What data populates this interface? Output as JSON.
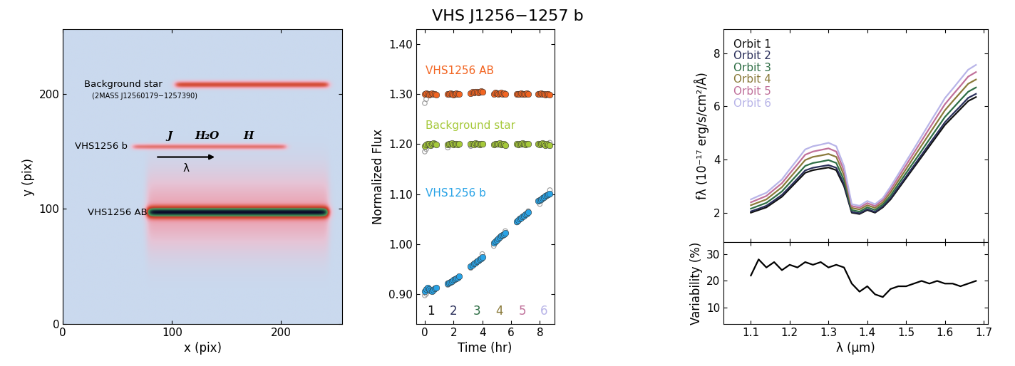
{
  "title": "VHS J1256−1257 b",
  "chart_data": [
    {
      "type": "image",
      "xlabel": "x (pix)",
      "ylabel": "y (pix)",
      "xlim": [
        0,
        256
      ],
      "ylim": [
        0,
        256
      ],
      "xticks": [
        0,
        100,
        200
      ],
      "yticks": [
        0,
        100,
        200
      ],
      "traces": [
        {
          "name": "Background star",
          "designation": "(2MASS J12560179−1257390)",
          "x": [
            103,
            244
          ],
          "y": 208,
          "label_x": 55,
          "label_y": 208,
          "designation_x": 75,
          "designation_y": 198,
          "components": [
            {
              "peak": 0.62,
              "fwhm": 5
            }
          ]
        },
        {
          "name": "VHS1256 b",
          "x": [
            64,
            205
          ],
          "y": 154,
          "label_x": 35,
          "label_y": 154,
          "components": [
            {
              "peak": 0.45,
              "fwhm": 4
            }
          ]
        },
        {
          "name": "VHS1256 AB",
          "x": [
            77,
            244
          ],
          "y": 97,
          "label_x": 50,
          "label_y": 97,
          "components": [
            {
              "peak": 1.0,
              "fwhm": 8
            },
            {
              "peak": 0.28,
              "fwhm": 55
            }
          ]
        }
      ],
      "features": [
        {
          "text": "J",
          "x": 98
        },
        {
          "text": "H₂O",
          "x": 132
        },
        {
          "text": "H",
          "x": 170
        }
      ],
      "features_y": 163,
      "arrow": {
        "text": "λ",
        "x": [
          85,
          141
        ],
        "y": 145,
        "text_x": 113,
        "text_y": 135
      }
    },
    {
      "type": "scatter",
      "xlabel": "Time (hr)",
      "ylabel": "Normalized Flux",
      "xlim": [
        -0.6,
        9.0
      ],
      "ylim": [
        0.84,
        1.43
      ],
      "xticks": [
        0,
        2,
        4,
        6,
        8
      ],
      "yticks": [
        {
          "value": 0.9,
          "label": "0.90"
        },
        {
          "value": 1.0,
          "label": "1.00"
        },
        {
          "value": 1.1,
          "label": "1.10"
        },
        {
          "value": 1.2,
          "label": "1.20"
        },
        {
          "value": 1.3,
          "label": "1.30"
        },
        {
          "value": 1.4,
          "label": "1.40"
        }
      ],
      "series": [
        {
          "color": "#9a9a9a",
          "marker": "open circle",
          "x": [
            0.0,
            0.1,
            1.6,
            3.2,
            4.0,
            4.8,
            5.6,
            6.4,
            7.2,
            8.0,
            8.7
          ],
          "values": [
            0.897,
            0.9,
            0.918,
            0.952,
            0.98,
            0.996,
            1.026,
            1.043,
            1.066,
            1.08,
            1.108
          ]
        },
        {
          "color": "#9a9a9a",
          "marker": "open circle",
          "x": [
            0.0,
            0.1,
            1.6,
            3.2,
            8.7
          ],
          "values": [
            1.185,
            1.19,
            1.193,
            1.196,
            1.203
          ]
        },
        {
          "color": "#9a9a9a",
          "marker": "open circle",
          "x": [
            0.0,
            0.1
          ],
          "values": [
            1.282,
            1.29
          ]
        },
        {
          "name": "VHS1256 AB",
          "color": "#f26522",
          "marker": "circle",
          "label_x": 0.05,
          "label_y": 1.347,
          "x": [
            0.0,
            0.1,
            0.2,
            0.3,
            0.4,
            0.5,
            0.6,
            0.7,
            0.8,
            1.6,
            1.7,
            1.8,
            1.9,
            2.0,
            2.1,
            2.2,
            2.3,
            2.4,
            3.2,
            3.3,
            3.4,
            3.5,
            3.6,
            3.7,
            3.8,
            3.9,
            4.0,
            4.8,
            4.9,
            5.0,
            5.1,
            5.2,
            5.3,
            5.4,
            5.5,
            5.6,
            6.4,
            6.5,
            6.6,
            6.7,
            6.8,
            6.9,
            7.0,
            7.1,
            7.2,
            7.9,
            8.0,
            8.1,
            8.2,
            8.3,
            8.4,
            8.5,
            8.6,
            8.7
          ],
          "values": [
            1.3,
            1.302,
            1.301,
            1.299,
            1.301,
            1.302,
            1.3,
            1.301,
            1.299,
            1.301,
            1.3,
            1.302,
            1.301,
            1.299,
            1.3,
            1.302,
            1.301,
            1.3,
            1.302,
            1.304,
            1.303,
            1.305,
            1.304,
            1.303,
            1.305,
            1.306,
            1.304,
            1.301,
            1.303,
            1.302,
            1.3,
            1.302,
            1.303,
            1.301,
            1.302,
            1.3,
            1.3,
            1.301,
            1.3,
            1.302,
            1.301,
            1.3,
            1.301,
            1.302,
            1.301,
            1.301,
            1.3,
            1.302,
            1.301,
            1.3,
            1.299,
            1.301,
            1.3,
            1.299
          ]
        },
        {
          "name": "Background star",
          "color": "#a6c93a",
          "marker": "circle",
          "label_x": 0.05,
          "label_y": 1.237,
          "x": [
            0.0,
            0.1,
            0.2,
            0.3,
            0.4,
            0.5,
            0.6,
            0.7,
            0.8,
            1.6,
            1.7,
            1.8,
            1.9,
            2.0,
            2.1,
            2.2,
            2.3,
            2.4,
            3.2,
            3.3,
            3.4,
            3.5,
            3.6,
            3.7,
            3.8,
            3.9,
            4.0,
            4.8,
            4.9,
            5.0,
            5.1,
            5.2,
            5.3,
            5.4,
            5.5,
            5.6,
            6.4,
            6.5,
            6.6,
            6.7,
            6.8,
            6.9,
            7.0,
            7.1,
            7.2,
            7.9,
            8.0,
            8.1,
            8.2,
            8.3,
            8.4,
            8.5,
            8.6,
            8.7
          ],
          "values": [
            1.196,
            1.199,
            1.201,
            1.2,
            1.198,
            1.201,
            1.202,
            1.2,
            1.199,
            1.199,
            1.201,
            1.2,
            1.202,
            1.199,
            1.2,
            1.201,
            1.199,
            1.2,
            1.2,
            1.201,
            1.199,
            1.202,
            1.2,
            1.201,
            1.199,
            1.2,
            1.201,
            1.199,
            1.201,
            1.2,
            1.2,
            1.202,
            1.199,
            1.201,
            1.2,
            1.198,
            1.2,
            1.199,
            1.201,
            1.2,
            1.202,
            1.201,
            1.199,
            1.2,
            1.201,
            1.201,
            1.199,
            1.2,
            1.202,
            1.2,
            1.198,
            1.2,
            1.199,
            1.198
          ]
        },
        {
          "name": "VHS1256 b",
          "color": "#29a3e6",
          "marker": "circle",
          "label_x": 0.05,
          "label_y": 1.102,
          "x": [
            0.0,
            0.1,
            0.2,
            0.3,
            0.4,
            0.5,
            0.6,
            0.7,
            0.8,
            1.6,
            1.7,
            1.8,
            1.9,
            2.0,
            2.1,
            2.2,
            2.3,
            2.4,
            3.2,
            3.3,
            3.4,
            3.5,
            3.6,
            3.7,
            3.8,
            3.9,
            4.0,
            4.8,
            4.9,
            5.0,
            5.1,
            5.2,
            5.3,
            5.4,
            5.5,
            5.6,
            6.4,
            6.5,
            6.6,
            6.7,
            6.8,
            6.9,
            7.0,
            7.1,
            7.2,
            7.9,
            8.0,
            8.1,
            8.2,
            8.3,
            8.4,
            8.5,
            8.6,
            8.7
          ],
          "values": [
            0.905,
            0.909,
            0.912,
            0.91,
            0.907,
            0.906,
            0.908,
            0.911,
            0.912,
            0.921,
            0.923,
            0.924,
            0.926,
            0.928,
            0.929,
            0.931,
            0.933,
            0.935,
            0.955,
            0.958,
            0.961,
            0.963,
            0.965,
            0.967,
            0.969,
            0.971,
            0.974,
            1.002,
            1.005,
            1.008,
            1.011,
            1.014,
            1.016,
            1.018,
            1.02,
            1.022,
            1.045,
            1.048,
            1.051,
            1.053,
            1.055,
            1.057,
            1.059,
            1.061,
            1.063,
            1.086,
            1.088,
            1.09,
            1.092,
            1.094,
            1.096,
            1.098,
            1.1,
            1.101
          ]
        }
      ],
      "orbit_labels": {
        "texts": [
          "1",
          "2",
          "3",
          "4",
          "5",
          "6"
        ],
        "x": [
          0.4,
          2.0,
          3.6,
          5.2,
          6.8,
          8.3
        ],
        "y": 0.865,
        "colors": [
          "#111111",
          "#2a2f5a",
          "#2e6e45",
          "#8a7a3a",
          "#c0709a",
          "#b8b4e8"
        ]
      }
    },
    {
      "type": "line",
      "ylabel": "fλ (10⁻¹⁷ erg/s/cm²/Å)",
      "tick_labels": "y",
      "legend": "upper left",
      "xlim": [
        1.03,
        1.71
      ],
      "ylim": [
        0.9,
        8.9
      ],
      "xticks": [
        1.1,
        1.2,
        1.3,
        1.4,
        1.5,
        1.6,
        1.7
      ],
      "yticks": [
        2,
        4,
        6,
        8
      ],
      "x": [
        1.1,
        1.12,
        1.14,
        1.16,
        1.18,
        1.2,
        1.22,
        1.24,
        1.26,
        1.28,
        1.3,
        1.32,
        1.34,
        1.36,
        1.38,
        1.4,
        1.42,
        1.44,
        1.46,
        1.48,
        1.5,
        1.52,
        1.54,
        1.56,
        1.58,
        1.6,
        1.62,
        1.64,
        1.66,
        1.68
      ],
      "series": [
        {
          "name": "Orbit 1",
          "color": "#111111",
          "values": [
            2.0,
            2.1,
            2.2,
            2.4,
            2.6,
            2.9,
            3.2,
            3.5,
            3.6,
            3.65,
            3.7,
            3.6,
            3.0,
            2.0,
            1.95,
            2.1,
            2.0,
            2.2,
            2.5,
            2.9,
            3.3,
            3.7,
            4.1,
            4.5,
            4.9,
            5.3,
            5.6,
            5.9,
            6.2,
            6.35
          ]
        },
        {
          "name": "Orbit 2",
          "color": "#2a2f5a",
          "values": [
            2.05,
            2.15,
            2.26,
            2.46,
            2.67,
            2.97,
            3.28,
            3.59,
            3.69,
            3.74,
            3.79,
            3.69,
            3.08,
            2.03,
            1.98,
            2.13,
            2.03,
            2.24,
            2.55,
            2.96,
            3.36,
            3.77,
            4.18,
            4.59,
            4.99,
            5.4,
            5.71,
            6.01,
            6.32,
            6.47
          ]
        },
        {
          "name": "Orbit 3",
          "color": "#2e6e45",
          "values": [
            2.15,
            2.26,
            2.37,
            2.58,
            2.8,
            3.12,
            3.44,
            3.76,
            3.87,
            3.92,
            3.98,
            3.87,
            3.23,
            2.1,
            2.04,
            2.2,
            2.1,
            2.31,
            2.64,
            3.07,
            3.49,
            3.91,
            4.33,
            4.76,
            5.18,
            5.6,
            5.92,
            6.24,
            6.55,
            6.71
          ]
        },
        {
          "name": "Orbit 4",
          "color": "#8a7a3a",
          "values": [
            2.28,
            2.39,
            2.5,
            2.73,
            2.96,
            3.3,
            3.64,
            3.98,
            4.1,
            4.15,
            4.21,
            4.1,
            3.41,
            2.18,
            2.12,
            2.28,
            2.18,
            2.39,
            2.76,
            3.2,
            3.64,
            4.09,
            4.53,
            4.97,
            5.41,
            5.85,
            6.19,
            6.52,
            6.85,
            7.01
          ]
        },
        {
          "name": "Orbit 5",
          "color": "#c0709a",
          "values": [
            2.39,
            2.51,
            2.63,
            2.87,
            3.11,
            3.47,
            3.82,
            4.18,
            4.3,
            4.36,
            4.42,
            4.3,
            3.59,
            2.25,
            2.19,
            2.36,
            2.25,
            2.48,
            2.87,
            3.33,
            3.79,
            4.25,
            4.71,
            5.17,
            5.63,
            6.08,
            6.43,
            6.77,
            7.12,
            7.29
          ]
        },
        {
          "name": "Orbit 6",
          "color": "#b8b4e8",
          "values": [
            2.5,
            2.63,
            2.75,
            3.0,
            3.25,
            3.63,
            4.0,
            4.38,
            4.5,
            4.56,
            4.63,
            4.5,
            3.75,
            2.32,
            2.26,
            2.44,
            2.32,
            2.55,
            2.98,
            3.45,
            3.93,
            4.4,
            4.88,
            5.36,
            5.83,
            6.31,
            6.66,
            7.02,
            7.38,
            7.56
          ]
        }
      ]
    },
    {
      "type": "line",
      "xlabel": "λ (μm)",
      "ylabel": "Variability (%)",
      "xlim": [
        1.03,
        1.71
      ],
      "ylim": [
        4,
        34.5
      ],
      "xticks": [
        1.1,
        1.2,
        1.3,
        1.4,
        1.5,
        1.6,
        1.7
      ],
      "yticks": [
        10,
        20,
        30
      ],
      "x": [
        1.1,
        1.12,
        1.14,
        1.16,
        1.18,
        1.2,
        1.22,
        1.24,
        1.26,
        1.28,
        1.3,
        1.32,
        1.34,
        1.36,
        1.38,
        1.4,
        1.42,
        1.44,
        1.46,
        1.48,
        1.5,
        1.52,
        1.54,
        1.56,
        1.58,
        1.6,
        1.62,
        1.64,
        1.66,
        1.68
      ],
      "series": [
        {
          "color": "#000000",
          "values": [
            22,
            28,
            25,
            27,
            24,
            26,
            25,
            27,
            26,
            27,
            25,
            26,
            25,
            19,
            16,
            18,
            15,
            14,
            17,
            18,
            18,
            19,
            20,
            19,
            20,
            19,
            19,
            18,
            19,
            20
          ]
        }
      ]
    }
  ]
}
